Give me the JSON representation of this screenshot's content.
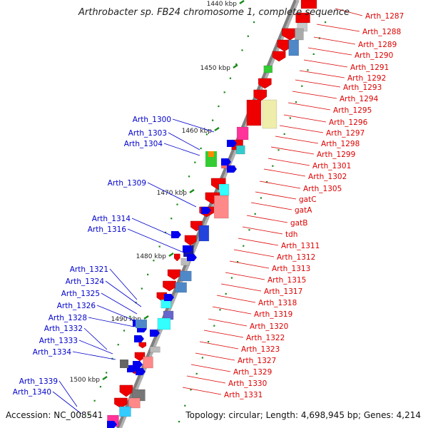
{
  "title": "Arthrobacter sp. FB24 chromosome 1, complete sequence",
  "accession": "Accession: NC_008541",
  "topology": "Topology: circular; Length: 4,698,945 bp; Genes: 4,214",
  "colors": {
    "forward_label": "#dd0000",
    "reverse_label": "#0000cc",
    "gene": "#ee0000",
    "backbone": "#808080",
    "tick": "#1a8a1a"
  },
  "kbp_ticks": [
    {
      "label": "1440 kbp",
      "pos": 1440
    },
    {
      "label": "1450 kbp",
      "pos": 1450
    },
    {
      "label": "1460 kbp",
      "pos": 1460
    },
    {
      "label": "1470 kbp",
      "pos": 1470
    },
    {
      "label": "1480 kbp",
      "pos": 1480
    },
    {
      "label": "1490 kbp",
      "pos": 1490
    },
    {
      "label": "1500 kbp",
      "pos": 1500
    }
  ],
  "right_labels": [
    "Arth_1287",
    "Arth_1288",
    "Arth_1289",
    "Arth_1290",
    "Arth_1291",
    "Arth_1292",
    "Arth_1293",
    "Arth_1294",
    "Arth_1295",
    "Arth_1296",
    "Arth_1297",
    "Arth_1298",
    "Arth_1299",
    "Arth_1301",
    "Arth_1302",
    "Arth_1305",
    "gatC",
    "gatA",
    "gatB",
    "tdh",
    "Arth_1311",
    "Arth_1312",
    "Arth_1313",
    "Arth_1315",
    "Arth_1317",
    "Arth_1318",
    "Arth_1319",
    "Arth_1320",
    "Arth_1322",
    "Arth_1323",
    "Arth_1327",
    "Arth_1329",
    "Arth_1330",
    "Arth_1331"
  ],
  "left_labels": [
    "Arth_1300",
    "Arth_1303",
    "Arth_1304",
    "Arth_1309",
    "Arth_1314",
    "Arth_1316",
    "Arth_1321",
    "Arth_1324",
    "Arth_1325",
    "Arth_1326",
    "Arth_1328",
    "Arth_1332",
    "Arth_1333",
    "Arth_1334",
    "Arth_1339",
    "Arth_1340"
  ]
}
